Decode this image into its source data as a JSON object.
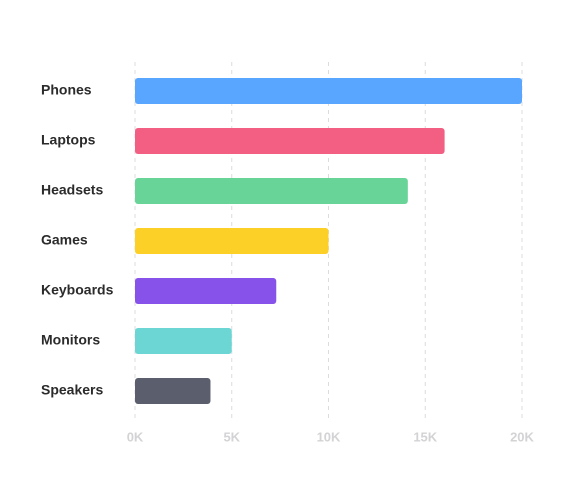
{
  "chart_data": {
    "type": "bar",
    "orientation": "horizontal",
    "categories": [
      "Phones",
      "Laptops",
      "Headsets",
      "Games",
      "Keyboards",
      "Monitors",
      "Speakers"
    ],
    "values": [
      20000,
      16000,
      14100,
      10000,
      7300,
      5000,
      3900
    ],
    "colors": [
      "#58a6ff",
      "#f25f82",
      "#69d497",
      "#fdd027",
      "#8652ea",
      "#6cd6d5",
      "#5b5f6d"
    ],
    "xlim": [
      0,
      20000
    ],
    "xticks": [
      0,
      5000,
      10000,
      15000,
      20000
    ],
    "xtick_labels": [
      "0K",
      "5K",
      "10K",
      "15K",
      "20K"
    ],
    "grid": "vertical-dashed",
    "title": "",
    "xlabel": "",
    "ylabel": ""
  }
}
